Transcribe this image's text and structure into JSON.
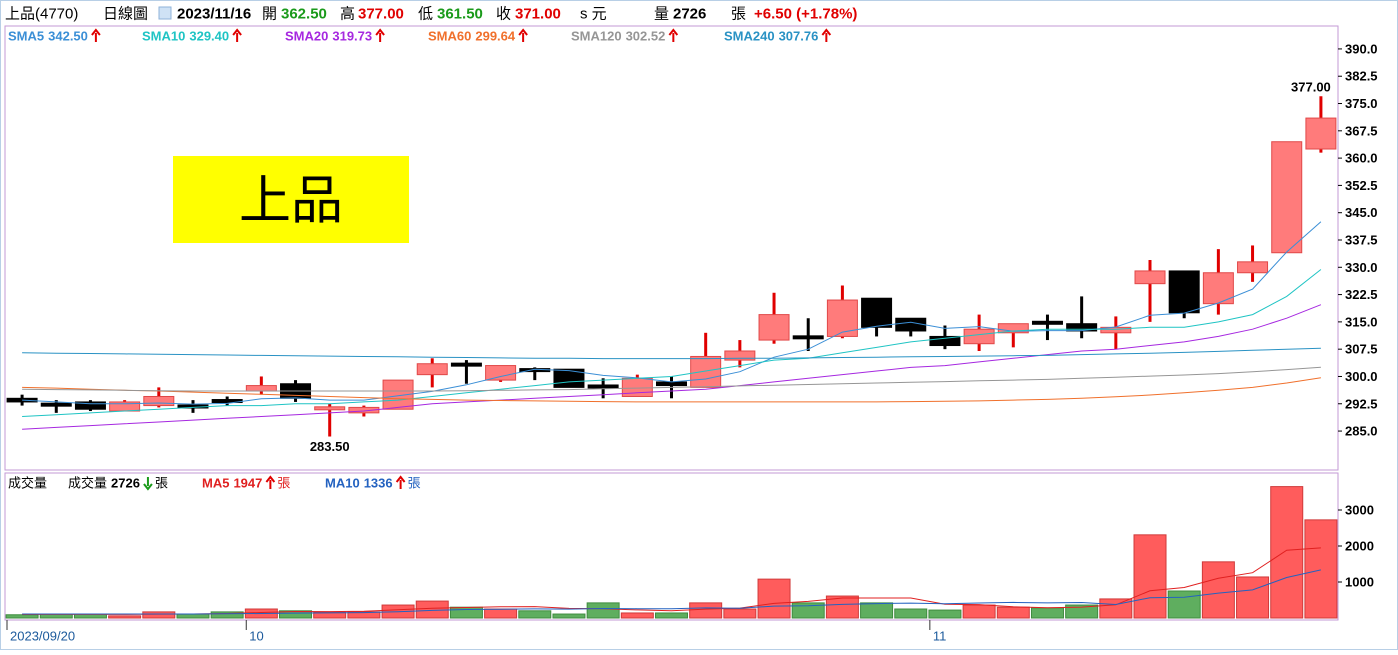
{
  "header": {
    "stock": "上品(4770)",
    "period": "日線圖",
    "date": "2023/11/16",
    "open_label": "開",
    "open": "362.50",
    "high_label": "高",
    "high": "377.00",
    "low_label": "低",
    "low": "361.50",
    "close_label": "收",
    "close": "371.00",
    "currency": "s 元",
    "volume_label": "量",
    "volume": "2726",
    "unit": "張",
    "change": "+6.50 (+1.78%)"
  },
  "chart_data": [
    {
      "type": "candlestick",
      "annotation": "上品",
      "open": [
        294,
        292.5,
        293,
        290.5,
        292,
        292,
        293.5,
        296,
        298,
        291,
        290,
        291,
        300.5,
        303.5,
        299,
        302,
        302,
        297.5,
        294.5,
        298.5,
        297,
        304.5,
        310,
        311,
        311,
        321.5,
        316,
        311,
        309,
        312,
        315,
        314.5,
        312,
        325.5,
        329,
        320,
        328.5,
        334,
        362.5
      ],
      "high": [
        295,
        293.5,
        293.5,
        293.5,
        297,
        293.5,
        294.5,
        300,
        299,
        292.5,
        292,
        299,
        305,
        304.5,
        303,
        302.5,
        302,
        299.5,
        300.5,
        300,
        312,
        310,
        323,
        316,
        325,
        321.5,
        316,
        314,
        317,
        314.5,
        317,
        322,
        316.5,
        332,
        329,
        335,
        336,
        364.5,
        377
      ],
      "low": [
        292,
        290,
        290.5,
        290.5,
        291.5,
        290,
        292,
        295,
        293,
        283.5,
        289,
        291,
        297,
        298,
        298.5,
        299,
        297,
        294,
        294.5,
        294,
        297,
        302.5,
        309,
        307,
        310.5,
        311,
        311,
        307.5,
        307,
        308,
        310,
        310.5,
        307.5,
        315,
        316,
        317,
        326,
        334,
        361.5
      ],
      "close": [
        293,
        292,
        291,
        293,
        294.5,
        291.5,
        293,
        297.5,
        294,
        291.5,
        291.5,
        299,
        303.5,
        303,
        303,
        301.5,
        297,
        297,
        299.5,
        297.5,
        305.5,
        307,
        317,
        310.5,
        321,
        313.5,
        312.5,
        308.5,
        313,
        314.5,
        314.5,
        312.5,
        313.5,
        329,
        317.5,
        328.5,
        331.5,
        364.5,
        371
      ],
      "max_label": "377.00",
      "min_label": "283.50",
      "up_color": "#ff7b7b",
      "down_color": "#000000",
      "series": [
        {
          "name": "SMA5",
          "label": "342.50",
          "color": "#3b8fd6",
          "values": [
            293.5,
            293,
            292.5,
            292.5,
            292.7,
            292.4,
            292.6,
            293.9,
            294.1,
            293.5,
            293.5,
            294.7,
            295.9,
            297.7,
            300,
            302,
            301.6,
            300.3,
            299.6,
            298.5,
            299.3,
            301.3,
            305.3,
            307.5,
            312.2,
            313.8,
            314.9,
            313.2,
            313.7,
            312.4,
            312.6,
            312.6,
            313.6,
            316.8,
            317.4,
            320.2,
            324,
            334.2,
            342.5
          ]
        },
        {
          "name": "SMA10",
          "label": "329.40",
          "color": "#1fc4c4",
          "values": [
            289,
            289.5,
            290,
            290.5,
            291,
            291.5,
            292,
            292,
            292.5,
            292.5,
            293,
            293.5,
            294.5,
            295.5,
            296.5,
            297.5,
            298.5,
            299,
            299.5,
            300,
            301.5,
            303,
            304.5,
            305,
            306.5,
            308,
            309.5,
            310.5,
            311.5,
            312.5,
            313,
            313,
            313,
            313.5,
            313.5,
            315,
            317,
            322,
            329.4
          ]
        },
        {
          "name": "SMA20",
          "label": "319.73",
          "color": "#a628e0",
          "values": [
            285.5,
            286,
            286.5,
            287,
            287.5,
            288,
            288.5,
            289,
            289.5,
            290,
            290.5,
            291.5,
            292.5,
            293,
            293.5,
            294,
            294.5,
            295,
            295.5,
            296,
            296.5,
            297.5,
            298.5,
            299.5,
            300.5,
            301.5,
            302.5,
            303,
            304,
            305,
            306,
            307,
            307.5,
            308.5,
            309.5,
            311,
            313,
            316,
            319.73
          ]
        },
        {
          "name": "SMA60",
          "label": "299.64",
          "color": "#f0702c",
          "values": [
            297,
            296.8,
            296.5,
            296.2,
            296,
            295.7,
            295.4,
            295.1,
            294.8,
            294.5,
            294.2,
            293.9,
            293.7,
            293.5,
            293.4,
            293.3,
            293.2,
            293.1,
            293,
            293,
            293,
            293,
            293,
            293,
            293,
            293,
            293.1,
            293.2,
            293.3,
            293.5,
            293.7,
            294,
            294.4,
            294.9,
            295.5,
            296.2,
            297,
            298.2,
            299.64
          ]
        },
        {
          "name": "SMA120",
          "label": "302.52",
          "color": "#969696",
          "values": [
            296.5,
            296.4,
            296.3,
            296.2,
            296.1,
            296,
            296,
            296,
            296,
            296,
            296,
            296,
            296,
            296.1,
            296.2,
            296.3,
            296.4,
            296.6,
            296.8,
            297,
            297.2,
            297.4,
            297.6,
            297.8,
            298,
            298.2,
            298.4,
            298.6,
            298.8,
            299,
            299.2,
            299.5,
            299.8,
            300.1,
            300.4,
            300.8,
            301.3,
            301.9,
            302.52
          ]
        },
        {
          "name": "SMA240",
          "label": "307.76",
          "color": "#2a92c4",
          "values": [
            306.5,
            306.4,
            306.3,
            306.2,
            306.1,
            306,
            305.9,
            305.8,
            305.7,
            305.6,
            305.5,
            305.4,
            305.3,
            305.2,
            305.1,
            305,
            305,
            304.9,
            304.9,
            304.9,
            304.9,
            305,
            305,
            305.1,
            305.2,
            305.3,
            305.4,
            305.5,
            305.6,
            305.7,
            305.8,
            306,
            306.2,
            306.4,
            306.6,
            306.9,
            307.2,
            307.5,
            307.76
          ]
        }
      ],
      "ylim": [
        274.3,
        396.3
      ],
      "yticks": [
        {
          "value": 285,
          "label": "285.0"
        },
        292.5,
        {
          "value": 300,
          "label": "300.0"
        },
        307.5,
        {
          "value": 315,
          "label": "315.0"
        },
        322.5,
        {
          "value": 330,
          "label": "330.0"
        },
        337.5,
        {
          "value": 345,
          "label": "345.0"
        },
        352.5,
        {
          "value": 360,
          "label": "360.0"
        },
        367.5,
        {
          "value": 375,
          "label": "375.0"
        },
        382.5,
        {
          "value": 390,
          "label": "390.0"
        }
      ]
    },
    {
      "type": "bar",
      "title": "成交量",
      "legend_name": "成交量",
      "legend_value": "2726",
      "unit": "張",
      "categories": [
        "2023/09/20",
        null,
        null,
        null,
        null,
        null,
        null,
        "10",
        null,
        null,
        null,
        null,
        null,
        null,
        null,
        null,
        null,
        null,
        null,
        null,
        null,
        null,
        null,
        null,
        null,
        null,
        null,
        "11",
        null,
        null,
        null,
        null,
        null,
        null,
        null,
        null,
        null,
        null,
        null
      ],
      "values": [
        90,
        110,
        110,
        60,
        170,
        110,
        170,
        250,
        200,
        160,
        170,
        360,
        470,
        300,
        250,
        200,
        110,
        420,
        140,
        140,
        420,
        250,
        1080,
        420,
        610,
        420,
        250,
        220,
        360,
        300,
        280,
        360,
        530,
        2310,
        750,
        1560,
        1140,
        3650,
        2726
      ],
      "up_color": "#ff5c5c",
      "down_color": "#5fae5f",
      "series": [
        {
          "name": "MA5",
          "label": "1947",
          "color": "#e02020",
          "values": [
            100,
            100,
            100,
            100,
            108,
            112,
            124,
            152,
            180,
            178,
            190,
            228,
            272,
            292,
            310,
            316,
            266,
            256,
            224,
            202,
            246,
            274,
            406,
            462,
            556,
            556,
            556,
            384,
            372,
            310,
            282,
            304,
            366,
            756,
            846,
            1102,
            1258,
            1882,
            1947
          ]
        },
        {
          "name": "MA10",
          "label": "1336",
          "color": "#2462c0",
          "values": [
            110,
            110,
            110,
            110,
            110,
            112,
            118,
            125,
            135,
            143,
            151,
            176,
            212,
            236,
            244,
            253,
            247,
            264,
            258,
            256,
            281,
            270,
            331,
            343,
            379,
            401,
            415,
            395,
            417,
            433,
            419,
            430,
            375,
            564,
            578,
            692,
            781,
            1124,
            1336
          ]
        }
      ],
      "ylim": [
        0,
        4000
      ],
      "yticks": [
        1000,
        2000,
        3000
      ]
    }
  ]
}
